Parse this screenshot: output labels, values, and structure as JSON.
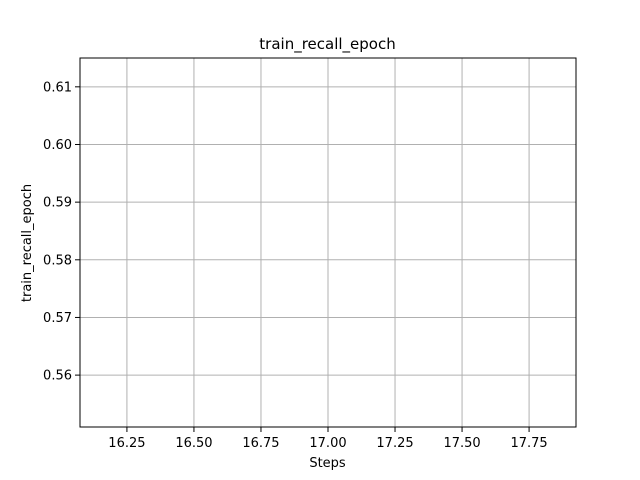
{
  "chart_data": {
    "type": "line",
    "title": "train_recall_epoch",
    "xlabel": "Steps",
    "ylabel": "train_recall_epoch",
    "xlim": [
      16.075,
      17.925
    ],
    "ylim": [
      0.551,
      0.615
    ],
    "x_ticks": [
      16.25,
      16.5,
      16.75,
      17.0,
      17.25,
      17.5,
      17.75
    ],
    "x_tick_labels": [
      "16.25",
      "16.50",
      "16.75",
      "17.00",
      "17.25",
      "17.50",
      "17.75"
    ],
    "y_ticks": [
      0.56,
      0.57,
      0.58,
      0.59,
      0.6,
      0.61
    ],
    "y_tick_labels": [
      "0.56",
      "0.57",
      "0.58",
      "0.59",
      "0.60",
      "0.61"
    ],
    "grid": true,
    "series": [
      {
        "x": [],
        "y": []
      }
    ],
    "colors": {
      "grid": "#b0b0b0",
      "axes": "#000000",
      "line": "#1f77b4"
    }
  }
}
